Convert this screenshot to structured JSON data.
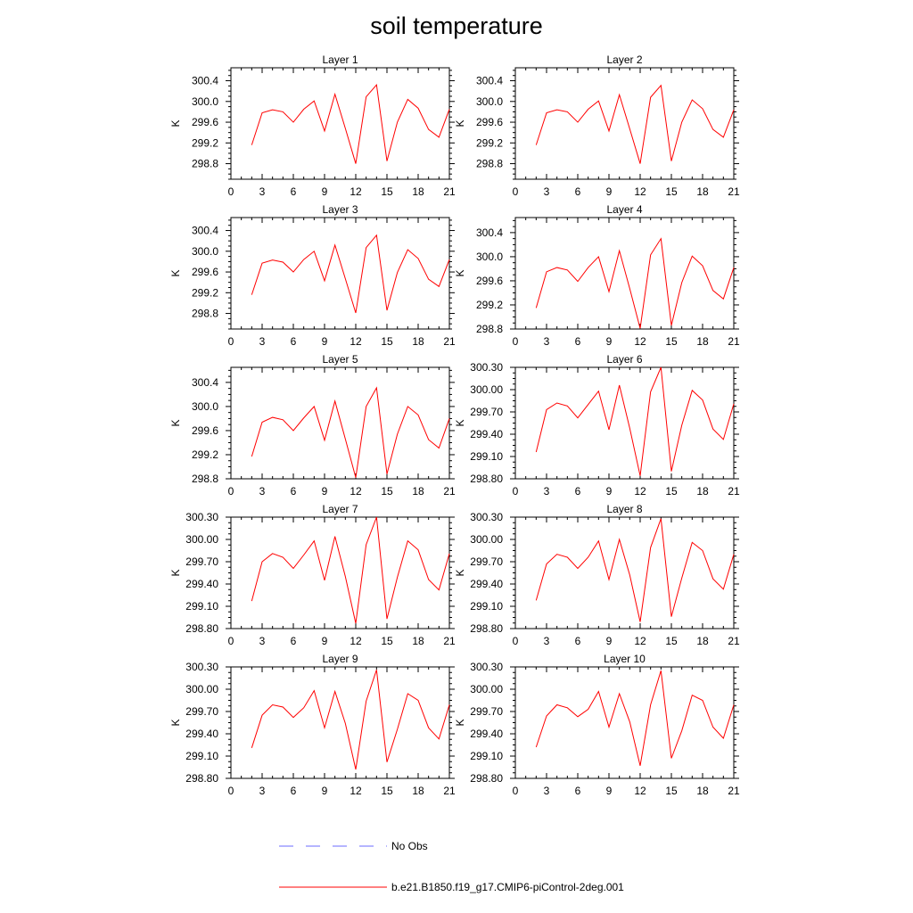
{
  "title": "soil temperature",
  "chart_data": [
    {
      "type": "line",
      "title": "Layer 1",
      "ylabel": "K",
      "x": [
        2,
        3,
        4,
        5,
        6,
        7,
        8,
        9,
        10,
        11,
        12,
        13,
        14,
        15,
        16,
        17,
        18,
        19,
        20,
        21
      ],
      "ylim": [
        298.5,
        300.65
      ],
      "yticks": [
        298.8,
        299.2,
        299.6,
        300.0,
        300.4
      ],
      "ydecimals": 1,
      "xlim": [
        0,
        21
      ],
      "xticks": [
        0,
        3,
        6,
        9,
        12,
        15,
        18,
        21
      ],
      "series": [
        {
          "color": "#ff0000",
          "values": [
            299.16,
            299.78,
            299.84,
            299.8,
            299.6,
            299.85,
            300.01,
            299.43,
            300.14,
            299.48,
            298.8,
            300.09,
            300.32,
            298.85,
            299.6,
            300.04,
            299.87,
            299.46,
            299.31,
            299.85
          ]
        }
      ]
    },
    {
      "type": "line",
      "title": "Layer 2",
      "ylabel": "K",
      "x": [
        2,
        3,
        4,
        5,
        6,
        7,
        8,
        9,
        10,
        11,
        12,
        13,
        14,
        15,
        16,
        17,
        18,
        19,
        20,
        21
      ],
      "ylim": [
        298.5,
        300.65
      ],
      "yticks": [
        298.8,
        299.2,
        299.6,
        300.0,
        300.4
      ],
      "ydecimals": 1,
      "xlim": [
        0,
        21
      ],
      "xticks": [
        0,
        3,
        6,
        9,
        12,
        15,
        18,
        21
      ],
      "series": [
        {
          "color": "#ff0000",
          "values": [
            299.16,
            299.78,
            299.84,
            299.8,
            299.6,
            299.85,
            300.01,
            299.43,
            300.13,
            299.47,
            298.8,
            300.08,
            300.31,
            298.85,
            299.6,
            300.03,
            299.86,
            299.46,
            299.31,
            299.84
          ]
        }
      ]
    },
    {
      "type": "line",
      "title": "Layer 3",
      "ylabel": "K",
      "x": [
        2,
        3,
        4,
        5,
        6,
        7,
        8,
        9,
        10,
        11,
        12,
        13,
        14,
        15,
        16,
        17,
        18,
        19,
        20,
        21
      ],
      "ylim": [
        298.5,
        300.65
      ],
      "yticks": [
        298.8,
        299.2,
        299.6,
        300.0,
        300.4
      ],
      "ydecimals": 1,
      "xlim": [
        0,
        21
      ],
      "xticks": [
        0,
        3,
        6,
        9,
        12,
        15,
        18,
        21
      ],
      "series": [
        {
          "color": "#ff0000",
          "values": [
            299.16,
            299.77,
            299.83,
            299.79,
            299.6,
            299.84,
            300.0,
            299.43,
            300.12,
            299.47,
            298.81,
            300.07,
            300.31,
            298.86,
            299.59,
            300.03,
            299.86,
            299.46,
            299.32,
            299.84
          ]
        }
      ]
    },
    {
      "type": "line",
      "title": "Layer 4",
      "ylabel": "K",
      "x": [
        2,
        3,
        4,
        5,
        6,
        7,
        8,
        9,
        10,
        11,
        12,
        13,
        14,
        15,
        16,
        17,
        18,
        19,
        20,
        21
      ],
      "ylim": [
        298.8,
        300.65
      ],
      "yticks": [
        298.8,
        299.2,
        299.6,
        300.0,
        300.4
      ],
      "ydecimals": 1,
      "xlim": [
        0,
        21
      ],
      "xticks": [
        0,
        3,
        6,
        9,
        12,
        15,
        18,
        21
      ],
      "series": [
        {
          "color": "#ff0000",
          "values": [
            299.15,
            299.75,
            299.82,
            299.78,
            299.59,
            299.82,
            300.0,
            299.42,
            300.1,
            299.47,
            298.81,
            300.03,
            300.3,
            298.86,
            299.57,
            300.01,
            299.85,
            299.44,
            299.3,
            299.82
          ]
        }
      ]
    },
    {
      "type": "line",
      "title": "Layer 5",
      "ylabel": "K",
      "x": [
        2,
        3,
        4,
        5,
        6,
        7,
        8,
        9,
        10,
        11,
        12,
        13,
        14,
        15,
        16,
        17,
        18,
        19,
        20,
        21
      ],
      "ylim": [
        298.8,
        300.65
      ],
      "yticks": [
        298.8,
        299.2,
        299.6,
        300.0,
        300.4
      ],
      "ydecimals": 1,
      "xlim": [
        0,
        21
      ],
      "xticks": [
        0,
        3,
        6,
        9,
        12,
        15,
        18,
        21
      ],
      "series": [
        {
          "color": "#ff0000",
          "values": [
            299.17,
            299.74,
            299.82,
            299.78,
            299.6,
            299.81,
            300.0,
            299.44,
            300.09,
            299.46,
            298.82,
            300.0,
            300.31,
            298.88,
            299.54,
            300.0,
            299.86,
            299.45,
            299.31,
            299.8
          ]
        }
      ]
    },
    {
      "type": "line",
      "title": "Layer 6",
      "ylabel": "K",
      "x": [
        2,
        3,
        4,
        5,
        6,
        7,
        8,
        9,
        10,
        11,
        12,
        13,
        14,
        15,
        16,
        17,
        18,
        19,
        20,
        21
      ],
      "ylim": [
        298.8,
        300.3
      ],
      "yticks": [
        298.8,
        299.1,
        299.4,
        299.7,
        300.0,
        300.3
      ],
      "ydecimals": 2,
      "xlim": [
        0,
        21
      ],
      "xticks": [
        0,
        3,
        6,
        9,
        12,
        15,
        18,
        21
      ],
      "series": [
        {
          "color": "#ff0000",
          "values": [
            299.16,
            299.73,
            299.82,
            299.78,
            299.62,
            299.8,
            299.98,
            299.46,
            300.06,
            299.48,
            298.84,
            299.97,
            300.3,
            298.9,
            299.52,
            299.99,
            299.86,
            299.47,
            299.33,
            299.81
          ]
        }
      ]
    },
    {
      "type": "line",
      "title": "Layer 7",
      "ylabel": "K",
      "x": [
        2,
        3,
        4,
        5,
        6,
        7,
        8,
        9,
        10,
        11,
        12,
        13,
        14,
        15,
        16,
        17,
        18,
        19,
        20,
        21
      ],
      "ylim": [
        298.8,
        300.3
      ],
      "yticks": [
        298.8,
        299.1,
        299.4,
        299.7,
        300.0,
        300.3
      ],
      "ydecimals": 2,
      "xlim": [
        0,
        21
      ],
      "xticks": [
        0,
        3,
        6,
        9,
        12,
        15,
        18,
        21
      ],
      "series": [
        {
          "color": "#ff0000",
          "values": [
            299.17,
            299.7,
            299.81,
            299.76,
            299.61,
            299.79,
            299.98,
            299.45,
            300.04,
            299.5,
            298.87,
            299.93,
            300.3,
            298.93,
            299.49,
            299.98,
            299.86,
            299.46,
            299.32,
            299.81
          ]
        }
      ]
    },
    {
      "type": "line",
      "title": "Layer 8",
      "ylabel": "K",
      "x": [
        2,
        3,
        4,
        5,
        6,
        7,
        8,
        9,
        10,
        11,
        12,
        13,
        14,
        15,
        16,
        17,
        18,
        19,
        20,
        21
      ],
      "ylim": [
        298.8,
        300.3
      ],
      "yticks": [
        298.8,
        299.1,
        299.4,
        299.7,
        300.0,
        300.3
      ],
      "ydecimals": 2,
      "xlim": [
        0,
        21
      ],
      "xticks": [
        0,
        3,
        6,
        9,
        12,
        15,
        18,
        21
      ],
      "series": [
        {
          "color": "#ff0000",
          "values": [
            299.18,
            299.67,
            299.8,
            299.76,
            299.61,
            299.76,
            299.98,
            299.46,
            300.0,
            299.52,
            298.89,
            299.89,
            300.28,
            298.96,
            299.48,
            299.96,
            299.85,
            299.47,
            299.33,
            299.8
          ]
        }
      ]
    },
    {
      "type": "line",
      "title": "Layer 9",
      "ylabel": "K",
      "x": [
        2,
        3,
        4,
        5,
        6,
        7,
        8,
        9,
        10,
        11,
        12,
        13,
        14,
        15,
        16,
        17,
        18,
        19,
        20,
        21
      ],
      "ylim": [
        298.8,
        300.3
      ],
      "yticks": [
        298.8,
        299.1,
        299.4,
        299.7,
        300.0,
        300.3
      ],
      "ydecimals": 2,
      "xlim": [
        0,
        21
      ],
      "xticks": [
        0,
        3,
        6,
        9,
        12,
        15,
        18,
        21
      ],
      "series": [
        {
          "color": "#ff0000",
          "values": [
            299.21,
            299.65,
            299.79,
            299.76,
            299.62,
            299.75,
            299.98,
            299.48,
            299.97,
            299.54,
            298.92,
            299.84,
            300.26,
            299.02,
            299.46,
            299.94,
            299.85,
            299.48,
            299.33,
            299.79
          ]
        }
      ]
    },
    {
      "type": "line",
      "title": "Layer 10",
      "ylabel": "K",
      "x": [
        2,
        3,
        4,
        5,
        6,
        7,
        8,
        9,
        10,
        11,
        12,
        13,
        14,
        15,
        16,
        17,
        18,
        19,
        20,
        21
      ],
      "ylim": [
        298.8,
        300.3
      ],
      "yticks": [
        298.8,
        299.1,
        299.4,
        299.7,
        300.0,
        300.3
      ],
      "ydecimals": 2,
      "xlim": [
        0,
        21
      ],
      "xticks": [
        0,
        3,
        6,
        9,
        12,
        15,
        18,
        21
      ],
      "series": [
        {
          "color": "#ff0000",
          "values": [
            299.22,
            299.64,
            299.79,
            299.75,
            299.63,
            299.73,
            299.97,
            299.49,
            299.94,
            299.56,
            298.97,
            299.79,
            300.25,
            299.07,
            299.44,
            299.92,
            299.85,
            299.49,
            299.34,
            299.79
          ]
        }
      ]
    }
  ],
  "legend": [
    {
      "label": "No Obs",
      "color": "#6b6bff",
      "style": "dashed"
    },
    {
      "label": "b.e21.B1850.f19_g17.CMIP6-piControl-2deg.001",
      "color": "#ff0000",
      "style": "solid"
    }
  ]
}
